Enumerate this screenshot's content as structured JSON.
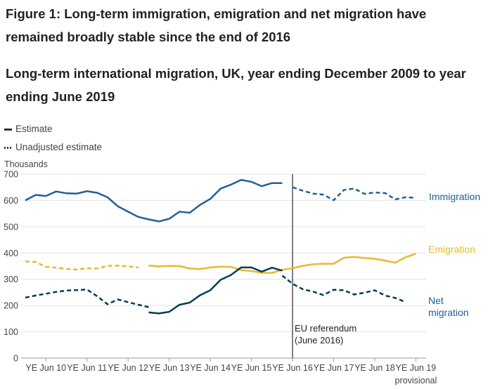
{
  "figure_title": "Figure 1: Long-term immigration, emigration and net migration have remained broadly stable since the end of 2016",
  "chart_title": "Long-term international migration, UK, year ending December 2009 to year ending June 2019",
  "legend": {
    "estimate_label": "Estimate",
    "unadjusted_label": "Unadjusted estimate"
  },
  "chart_data": {
    "type": "line",
    "ylabel": "Thousands",
    "ylim": [
      0,
      700
    ],
    "yticks": [
      0,
      100,
      200,
      300,
      400,
      500,
      600,
      700
    ],
    "x_start": "YE Dec 2009",
    "x_step": "quarter",
    "x_tick_labels": [
      "YE Jun 10",
      "YE Jun 11",
      "YE Jun 12",
      "YE Jun 13",
      "YE Jun 14",
      "YE Jun 15",
      "YE Jun 16",
      "YE Jun 17",
      "YE Jun 18",
      "YE Jun 19"
    ],
    "x_tick_sublabel": "provisional",
    "x_tick_indices": [
      2,
      6,
      10,
      14,
      18,
      22,
      26,
      30,
      34,
      38
    ],
    "annotation": {
      "label_line1": "EU referendum",
      "label_line2": "(June 2016)",
      "x_index": 26
    },
    "series": [
      {
        "name": "Immigration",
        "color": "#206095",
        "estimate": [
          600,
          621,
          617,
          634,
          627,
          626,
          635,
          629,
          612,
          578,
          557,
          537,
          528,
          520,
          530,
          557,
          553,
          583,
          606,
          645,
          660,
          678,
          671,
          654,
          666,
          666
        ],
        "estimate_start_index": 0,
        "unadjusted": [
          650,
          637,
          626,
          622,
          601,
          640,
          645,
          625,
          630,
          628,
          604,
          612,
          610
        ],
        "unadjusted_start_index": 26
      },
      {
        "name": "Emigration",
        "color": "#e8b92d",
        "estimate": [
          352,
          349,
          351,
          350,
          341,
          339,
          345,
          348,
          347,
          335,
          331,
          325,
          324,
          336,
          342,
          351,
          357,
          359,
          359,
          382,
          385,
          381,
          378,
          371,
          363,
          384,
          397
        ],
        "estimate_start_index": 12,
        "unadjusted": [
          368,
          366,
          347,
          344,
          339,
          337,
          342,
          341,
          351,
          352,
          349,
          345
        ],
        "unadjusted_start_index": 0
      },
      {
        "name": "Net migration",
        "color": "#003c57",
        "estimate": [
          174,
          170,
          176,
          203,
          211,
          239,
          258,
          298,
          316,
          345,
          345,
          329,
          344,
          333
        ],
        "estimate_start_index": 12,
        "unadjusted": [
          230,
          238,
          245,
          252,
          257,
          259,
          261,
          235,
          205,
          223,
          213,
          203,
          194,
          314,
          283,
          262,
          253,
          240,
          260,
          258,
          242,
          249,
          258,
          238,
          229,
          213
        ],
        "unadjusted_start_index": 0,
        "unadjusted_break_after_index": 12
      }
    ],
    "series_labels": {
      "immigration": "Immigration",
      "emigration": "Emigration",
      "net_line1": "Net",
      "net_line2": "migration"
    }
  }
}
